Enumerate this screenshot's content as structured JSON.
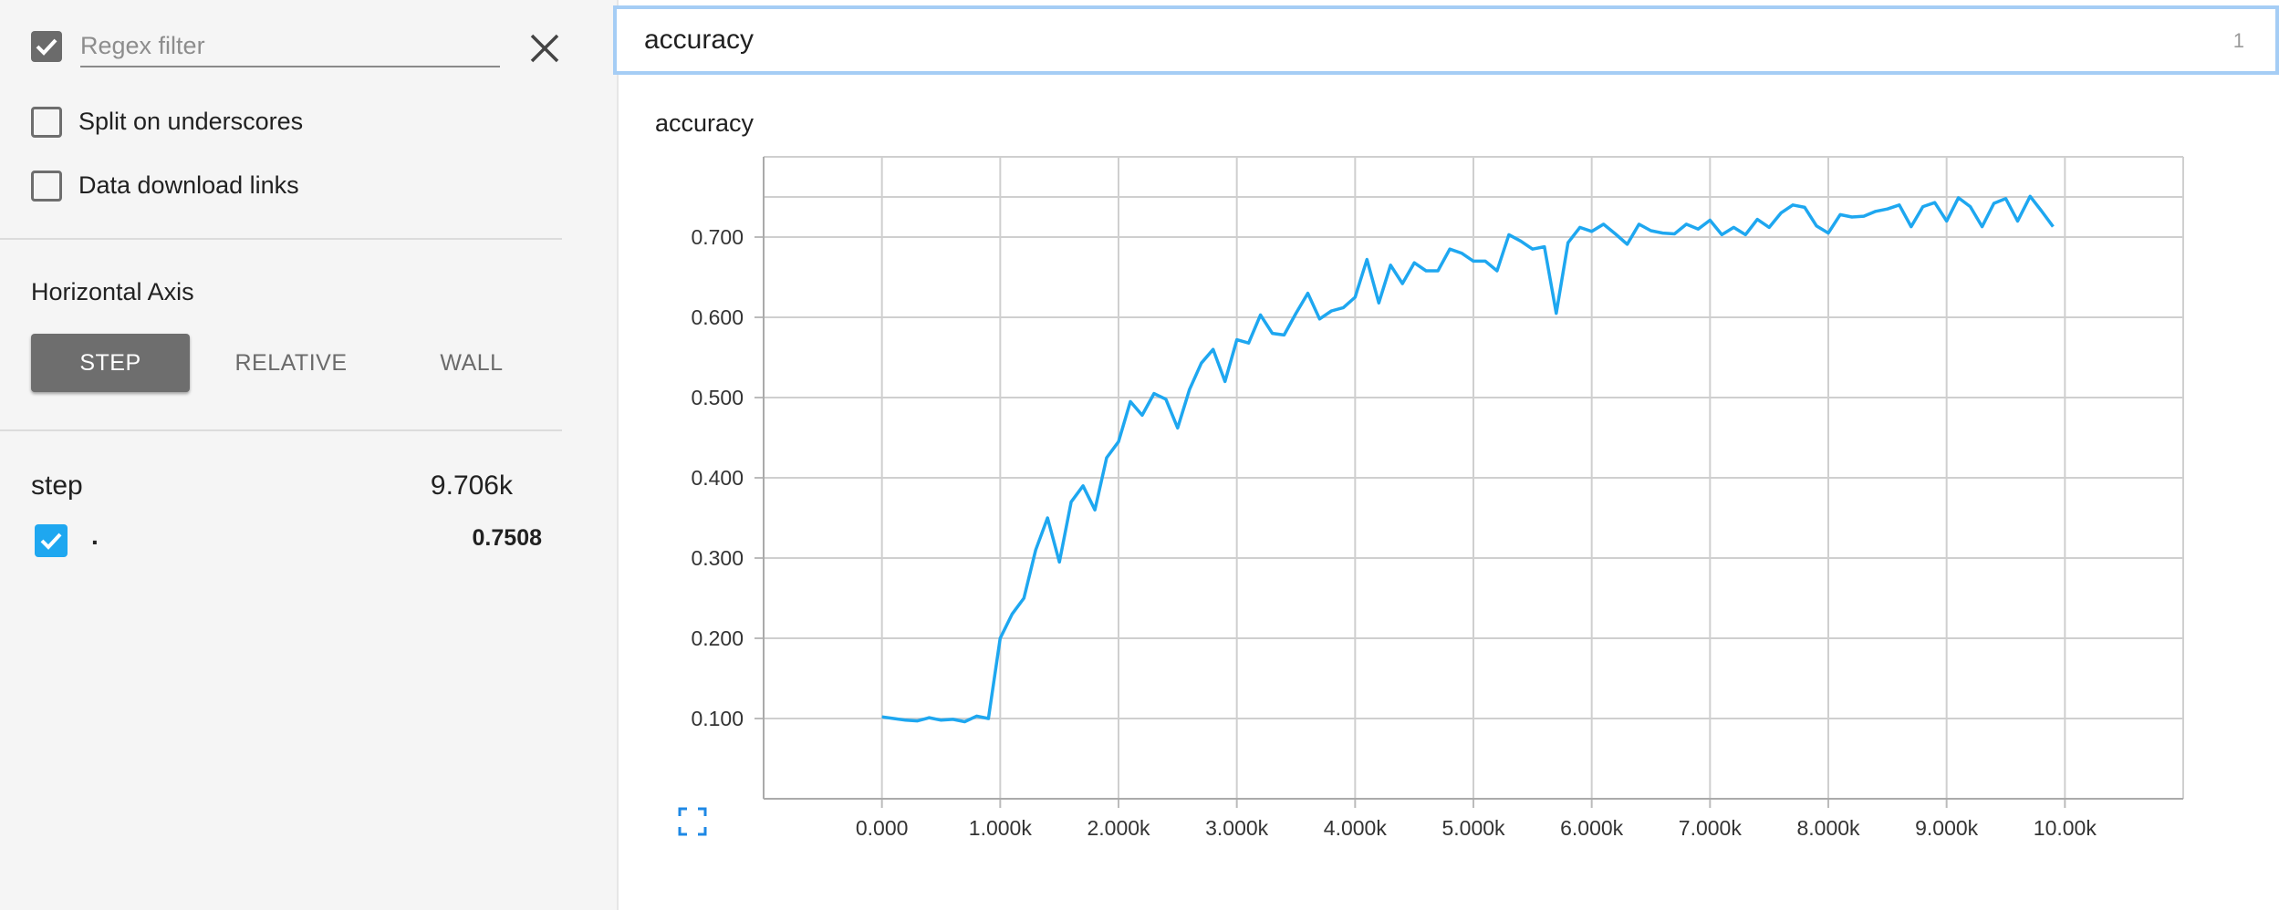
{
  "sidebar": {
    "regex_filter": {
      "checked": true,
      "placeholder": "Regex filter",
      "value": ""
    },
    "split_on_underscores": {
      "checked": false,
      "label": "Split on underscores"
    },
    "data_download_links": {
      "checked": false,
      "label": "Data download links"
    },
    "horizontal_axis": {
      "title": "Horizontal Axis",
      "options": [
        "STEP",
        "RELATIVE",
        "WALL"
      ],
      "selected": "STEP"
    },
    "tooltip": {
      "header_label": "step",
      "header_value": "9.706k",
      "run_name": ".",
      "run_value": "0.7508"
    }
  },
  "search": {
    "value": "accuracy",
    "match_count": "1"
  },
  "card": {
    "title": "accuracy"
  },
  "colors": {
    "series": "#1ea7f0",
    "accent": "#1ea7f0",
    "button_active": "#6e6e6e"
  },
  "chart_data": {
    "type": "line",
    "title": "accuracy",
    "xlabel": "",
    "ylabel": "",
    "x_ticks": [
      "0.000",
      "1.000k",
      "2.000k",
      "3.000k",
      "4.000k",
      "5.000k",
      "6.000k",
      "7.000k",
      "8.000k",
      "9.000k",
      "10.00k"
    ],
    "y_ticks": [
      "0.100",
      "0.200",
      "0.300",
      "0.400",
      "0.500",
      "0.600",
      "0.700"
    ],
    "xlim": [
      -1000,
      11000
    ],
    "ylim": [
      0.0,
      0.8
    ],
    "grid": true,
    "series": [
      {
        "x": [
          0,
          100,
          200,
          300,
          400,
          500,
          600,
          700,
          800,
          900,
          1000,
          1100,
          1200,
          1300,
          1400,
          1500,
          1600,
          1700,
          1800,
          1900,
          2000,
          2100,
          2200,
          2300,
          2400,
          2500,
          2600,
          2700,
          2800,
          2900,
          3000,
          3100,
          3200,
          3300,
          3400,
          3500,
          3600,
          3700,
          3800,
          3900,
          4000,
          4100,
          4200,
          4300,
          4400,
          4500,
          4600,
          4700,
          4800,
          4900,
          5000,
          5100,
          5200,
          5300,
          5400,
          5500,
          5600,
          5700,
          5800,
          5900,
          6000,
          6100,
          6200,
          6300,
          6400,
          6500,
          6600,
          6700,
          6800,
          6900,
          7000,
          7100,
          7200,
          7300,
          7400,
          7500,
          7600,
          7700,
          7800,
          7900,
          8000,
          8100,
          8200,
          8300,
          8400,
          8500,
          8600,
          8700,
          8800,
          8900,
          9000,
          9100,
          9200,
          9300,
          9400,
          9500,
          9600,
          9706,
          9800,
          9900
        ],
        "y": [
          0.102,
          0.1,
          0.098,
          0.097,
          0.101,
          0.098,
          0.099,
          0.096,
          0.103,
          0.1,
          0.2,
          0.23,
          0.25,
          0.31,
          0.35,
          0.295,
          0.37,
          0.39,
          0.36,
          0.425,
          0.445,
          0.495,
          0.478,
          0.505,
          0.498,
          0.462,
          0.51,
          0.543,
          0.56,
          0.52,
          0.572,
          0.568,
          0.603,
          0.58,
          0.578,
          0.605,
          0.63,
          0.598,
          0.608,
          0.612,
          0.625,
          0.672,
          0.618,
          0.665,
          0.642,
          0.668,
          0.658,
          0.658,
          0.685,
          0.68,
          0.67,
          0.67,
          0.658,
          0.703,
          0.695,
          0.685,
          0.688,
          0.605,
          0.693,
          0.712,
          0.707,
          0.716,
          0.704,
          0.691,
          0.716,
          0.708,
          0.705,
          0.704,
          0.716,
          0.71,
          0.721,
          0.703,
          0.712,
          0.703,
          0.722,
          0.712,
          0.73,
          0.74,
          0.737,
          0.714,
          0.705,
          0.728,
          0.725,
          0.726,
          0.732,
          0.735,
          0.74,
          0.713,
          0.738,
          0.743,
          0.72,
          0.749,
          0.738,
          0.713,
          0.742,
          0.748,
          0.72,
          0.7508,
          0.733,
          0.713
        ]
      }
    ]
  }
}
